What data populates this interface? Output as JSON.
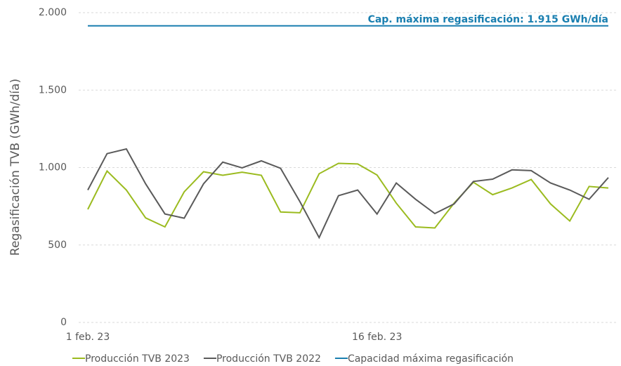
{
  "chart_data": {
    "type": "line",
    "y_label": "Regasificación TVB (GWh/día)",
    "annotation": "Cap. máxima regasificación: 1.915 GWh/día",
    "categories": [
      "1 feb. 23",
      null,
      null,
      null,
      null,
      null,
      null,
      null,
      null,
      null,
      null,
      null,
      null,
      null,
      null,
      "16 feb. 23",
      null,
      null,
      null,
      null,
      null,
      null,
      null,
      null,
      null,
      null,
      null,
      null
    ],
    "series": [
      {
        "name": "Producción TVB 2023",
        "color": "#9bbb1f",
        "values": [
          730,
          978,
          855,
          675,
          617,
          843,
          973,
          950,
          970,
          950,
          713,
          708,
          960,
          1027,
          1023,
          952,
          770,
          617,
          610,
          770,
          905,
          825,
          868,
          923,
          765,
          655,
          878,
          868
        ]
      },
      {
        "name": "Producción TVB 2022",
        "color": "#5a5a5a",
        "values": [
          855,
          1090,
          1120,
          895,
          700,
          673,
          895,
          1035,
          998,
          1043,
          995,
          780,
          548,
          818,
          855,
          700,
          900,
          795,
          703,
          765,
          910,
          925,
          985,
          980,
          900,
          855,
          795,
          935
        ]
      },
      {
        "name": "Capacidad máxima regasificación",
        "color": "#1a7fb0",
        "values": [
          1915,
          1915,
          1915,
          1915,
          1915,
          1915,
          1915,
          1915,
          1915,
          1915,
          1915,
          1915,
          1915,
          1915,
          1915,
          1915,
          1915,
          1915,
          1915,
          1915,
          1915,
          1915,
          1915,
          1915,
          1915,
          1915,
          1915,
          1915
        ]
      }
    ],
    "ylim": [
      0,
      2000
    ],
    "yticks": [
      0,
      500,
      {
        "value": 1000,
        "label": "1.000"
      },
      {
        "value": 1500,
        "label": "1.500"
      },
      {
        "value": 2000,
        "label": "2.000"
      }
    ],
    "grid": true
  }
}
